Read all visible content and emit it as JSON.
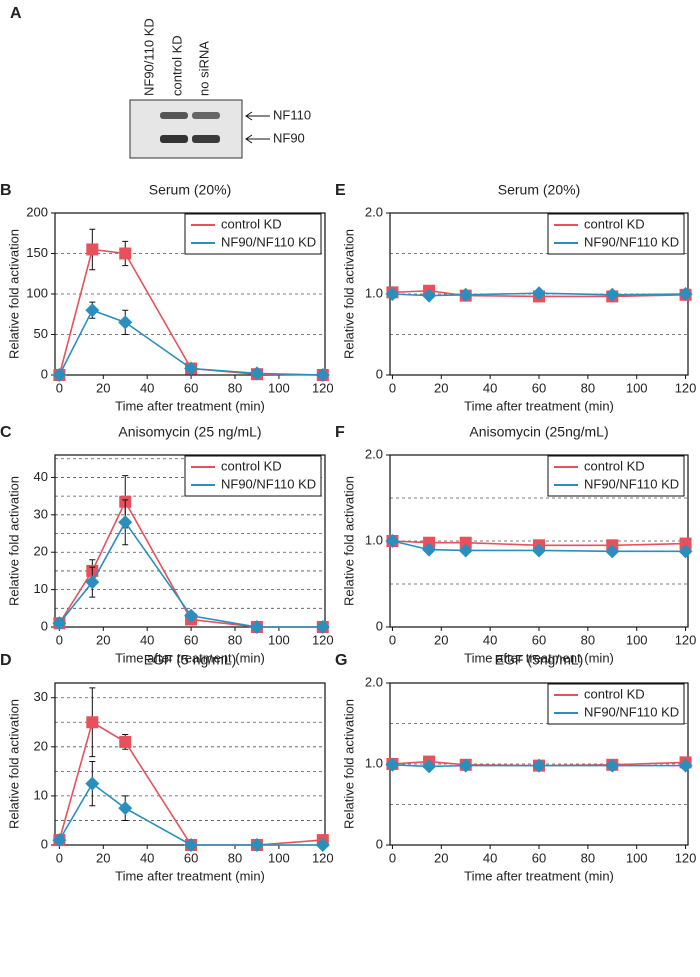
{
  "blot": {
    "label": "A",
    "lanes": [
      "NF90/110 KD",
      "control KD",
      "no siRNA"
    ],
    "bands": [
      "NF110",
      "NF90"
    ]
  },
  "chart_data": [
    {
      "type": "line",
      "label": "B",
      "title": "Serum (20%)",
      "ylabel": "Relative fold activation",
      "xlabel": "Time after treatment (min)",
      "x": [
        0,
        15,
        30,
        60,
        90,
        120
      ],
      "xlim": [
        -2,
        121
      ],
      "xticks": [
        0,
        20,
        40,
        60,
        80,
        100,
        120
      ],
      "ylim": [
        0,
        200
      ],
      "yticks": [
        0,
        50,
        100,
        150,
        200
      ],
      "ygrid": [
        50,
        100,
        150
      ],
      "legend": "upper right",
      "series": [
        {
          "name": "control KD",
          "color": "#e8505b",
          "marker": "square",
          "values": [
            0,
            155,
            150,
            8,
            1,
            0
          ],
          "errors": [
            null,
            25,
            15,
            null,
            null,
            null
          ]
        },
        {
          "name": "NF90/NF110 KD",
          "color": "#2a8fbd",
          "marker": "diamond",
          "values": [
            0,
            80,
            65,
            8,
            2,
            0
          ],
          "errors": [
            null,
            10,
            15,
            null,
            null,
            null
          ]
        }
      ]
    },
    {
      "type": "line",
      "label": "C",
      "title": "Anisomycin (25 ng/mL)",
      "ylabel": "Relative fold activation",
      "xlabel": "Time after treatment (min)",
      "x": [
        0,
        15,
        30,
        60,
        90,
        120
      ],
      "xlim": [
        -2,
        121
      ],
      "xticks": [
        0,
        20,
        40,
        60,
        80,
        100,
        120
      ],
      "ylim": [
        0,
        46
      ],
      "yticks": [
        0,
        10,
        20,
        30,
        40
      ],
      "ygrid": [
        5,
        10,
        15,
        20,
        25,
        30,
        35,
        40,
        45
      ],
      "legend": "upper right",
      "series": [
        {
          "name": "control KD",
          "color": "#e8505b",
          "marker": "square",
          "values": [
            1,
            15,
            33.5,
            2,
            0,
            0
          ],
          "errors": [
            null,
            3,
            7,
            null,
            null,
            null
          ]
        },
        {
          "name": "NF90/NF110 KD",
          "color": "#2a8fbd",
          "marker": "diamond",
          "values": [
            1,
            12,
            28,
            3,
            0,
            0
          ],
          "errors": [
            null,
            4,
            6,
            null,
            null,
            null
          ]
        }
      ]
    },
    {
      "type": "line",
      "label": "D",
      "title": "EGF (5 ng/mL)",
      "ylabel": "Relative fold activation",
      "xlabel": "Time after treatment (min)",
      "x": [
        0,
        15,
        30,
        60,
        90,
        120
      ],
      "xlim": [
        -2,
        121
      ],
      "xticks": [
        0,
        20,
        40,
        60,
        80,
        100,
        120
      ],
      "ylim": [
        0,
        33
      ],
      "yticks": [
        0,
        10,
        20,
        30
      ],
      "ygrid": [
        5,
        10,
        15,
        20,
        25,
        30
      ],
      "legend": null,
      "series": [
        {
          "name": "control KD",
          "color": "#e8505b",
          "marker": "square",
          "values": [
            1,
            25,
            21,
            0,
            0,
            1
          ],
          "errors": [
            null,
            7,
            1.5,
            null,
            null,
            null
          ]
        },
        {
          "name": "NF90/NF110 KD",
          "color": "#2a8fbd",
          "marker": "diamond",
          "values": [
            1,
            12.5,
            7.5,
            0,
            0,
            0
          ],
          "errors": [
            null,
            4.5,
            2.5,
            null,
            null,
            null
          ]
        }
      ]
    },
    {
      "type": "line",
      "label": "E",
      "title": "Serum (20%)",
      "ylabel": "Relative fold activation",
      "xlabel": "Time after treatment (min)",
      "x": [
        0,
        15,
        30,
        60,
        90,
        120
      ],
      "xlim": [
        -1,
        121
      ],
      "xticks": [
        0,
        20,
        40,
        60,
        80,
        100,
        120
      ],
      "ylim": [
        0,
        2
      ],
      "yticks": [
        0,
        {
          "value": 1,
          "label": "1.0"
        },
        {
          "value": 2,
          "label": "2.0"
        }
      ],
      "ygrid": [
        0.5,
        1,
        1.5
      ],
      "legend": "upper right",
      "series": [
        {
          "name": "control KD",
          "color": "#e8505b",
          "marker": "square",
          "values": [
            1.02,
            1.04,
            0.98,
            0.97,
            0.97,
            0.99
          ]
        },
        {
          "name": "NF90/NF110 KD",
          "color": "#2a8fbd",
          "marker": "diamond",
          "values": [
            1.0,
            0.98,
            0.99,
            1.01,
            0.99,
            1.0
          ]
        }
      ]
    },
    {
      "type": "line",
      "label": "F",
      "title": "Anisomycin (25ng/mL)",
      "ylabel": "Relative fold activation",
      "xlabel": "Time after treatment (min)",
      "x": [
        0,
        15,
        30,
        60,
        90,
        120
      ],
      "xlim": [
        -1,
        121
      ],
      "xticks": [
        0,
        20,
        40,
        60,
        80,
        100,
        120
      ],
      "ylim": [
        0,
        2
      ],
      "yticks": [
        0,
        {
          "value": 1,
          "label": "1.0"
        },
        {
          "value": 2,
          "label": "2.0"
        }
      ],
      "ygrid": [
        0.5,
        1,
        1.5
      ],
      "legend": "upper right",
      "series": [
        {
          "name": "control KD",
          "color": "#e8505b",
          "marker": "square",
          "values": [
            1.0,
            0.98,
            0.98,
            0.95,
            0.95,
            0.97
          ]
        },
        {
          "name": "NF90/NF110 KD",
          "color": "#2a8fbd",
          "marker": "diamond",
          "values": [
            1.0,
            0.9,
            0.89,
            0.89,
            0.88,
            0.88
          ]
        }
      ]
    },
    {
      "type": "line",
      "label": "G",
      "title": "EGF (5ng/mL)",
      "ylabel": "Relative fold activation",
      "xlabel": "Time after treatment (min)",
      "x": [
        0,
        15,
        30,
        60,
        90,
        120
      ],
      "xlim": [
        -1,
        121
      ],
      "xticks": [
        0,
        20,
        40,
        60,
        80,
        100,
        120
      ],
      "ylim": [
        0,
        2
      ],
      "yticks": [
        0,
        {
          "value": 1,
          "label": "1.0"
        },
        {
          "value": 2,
          "label": "2.0"
        }
      ],
      "ygrid": [
        0.5,
        1,
        1.5
      ],
      "legend": "upper right",
      "series": [
        {
          "name": "control KD",
          "color": "#e8505b",
          "marker": "square",
          "values": [
            1.0,
            1.03,
            0.99,
            0.98,
            0.99,
            1.02
          ]
        },
        {
          "name": "NF90/NF110 KD",
          "color": "#2a8fbd",
          "marker": "diamond",
          "values": [
            0.99,
            0.97,
            0.98,
            0.98,
            0.98,
            0.98
          ]
        }
      ]
    }
  ]
}
